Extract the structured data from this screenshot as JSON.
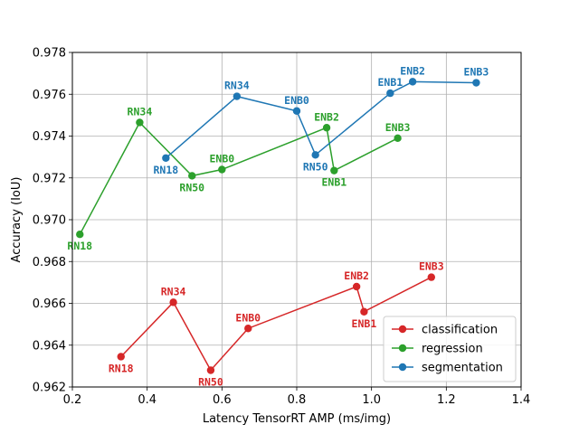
{
  "chart_data": {
    "type": "line",
    "xlabel": "Latency TensorRT AMP (ms/img)",
    "ylabel": "Accuracy (IoU)",
    "xlim": [
      0.2,
      1.4
    ],
    "ylim": [
      0.962,
      0.978
    ],
    "xticks": [
      "0.2",
      "0.4",
      "0.6",
      "0.8",
      "1.0",
      "1.2",
      "1.4"
    ],
    "yticks": [
      "0.962",
      "0.964",
      "0.966",
      "0.968",
      "0.970",
      "0.972",
      "0.974",
      "0.976",
      "0.978"
    ],
    "grid": true,
    "legend_position": "lower-right",
    "series": [
      {
        "name": "classification",
        "color": "#d62728",
        "points": [
          {
            "label": "RN18",
            "x": 0.33,
            "y": 0.96345,
            "label_pos": "below"
          },
          {
            "label": "RN34",
            "x": 0.47,
            "y": 0.96605,
            "label_pos": "above"
          },
          {
            "label": "RN50",
            "x": 0.57,
            "y": 0.9628,
            "label_pos": "below"
          },
          {
            "label": "ENB0",
            "x": 0.67,
            "y": 0.9648,
            "label_pos": "above"
          },
          {
            "label": "ENB2",
            "x": 0.96,
            "y": 0.9668,
            "label_pos": "above"
          },
          {
            "label": "ENB1",
            "x": 0.98,
            "y": 0.9656,
            "label_pos": "below"
          },
          {
            "label": "ENB3",
            "x": 1.16,
            "y": 0.96725,
            "label_pos": "above"
          }
        ]
      },
      {
        "name": "regression",
        "color": "#2ca02c",
        "points": [
          {
            "label": "RN18",
            "x": 0.22,
            "y": 0.9693,
            "label_pos": "below"
          },
          {
            "label": "RN34",
            "x": 0.38,
            "y": 0.97465,
            "label_pos": "above"
          },
          {
            "label": "RN50",
            "x": 0.52,
            "y": 0.9721,
            "label_pos": "below"
          },
          {
            "label": "ENB0",
            "x": 0.6,
            "y": 0.9724,
            "label_pos": "above"
          },
          {
            "label": "ENB2",
            "x": 0.88,
            "y": 0.9744,
            "label_pos": "above"
          },
          {
            "label": "ENB1",
            "x": 0.9,
            "y": 0.97235,
            "label_pos": "below"
          },
          {
            "label": "ENB3",
            "x": 1.07,
            "y": 0.9739,
            "label_pos": "above"
          }
        ]
      },
      {
        "name": "segmentation",
        "color": "#1f77b4",
        "points": [
          {
            "label": "RN18",
            "x": 0.45,
            "y": 0.97295,
            "label_pos": "below"
          },
          {
            "label": "RN34",
            "x": 0.64,
            "y": 0.9759,
            "label_pos": "above"
          },
          {
            "label": "ENB0",
            "x": 0.8,
            "y": 0.9752,
            "label_pos": "above"
          },
          {
            "label": "RN50",
            "x": 0.85,
            "y": 0.9731,
            "label_pos": "below"
          },
          {
            "label": "ENB1",
            "x": 1.05,
            "y": 0.97605,
            "label_pos": "above"
          },
          {
            "label": "ENB2",
            "x": 1.11,
            "y": 0.9766,
            "label_pos": "above"
          },
          {
            "label": "ENB3",
            "x": 1.28,
            "y": 0.97655,
            "label_pos": "above"
          }
        ]
      }
    ]
  }
}
